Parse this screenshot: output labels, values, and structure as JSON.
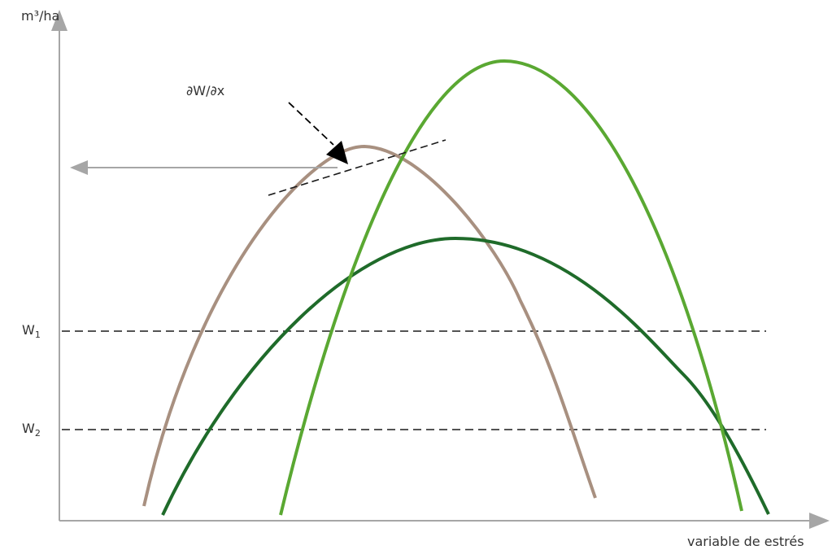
{
  "labels": {
    "y_axis": "m³/ha",
    "x_axis": "variable de estrés",
    "derivative": "∂W/∂x",
    "w1_base": "W",
    "w1_sub": "1",
    "w2_base": "W",
    "w2_sub": "2"
  },
  "colors": {
    "axis": "#a6a6a6",
    "brown_curve": "#a89080",
    "light_green_curve": "#5aa832",
    "dark_green_curve": "#1f6b2a",
    "dashed": "#1a1a1a",
    "gray_arrow": "#a6a6a6",
    "black_arrow": "#000000"
  }
}
